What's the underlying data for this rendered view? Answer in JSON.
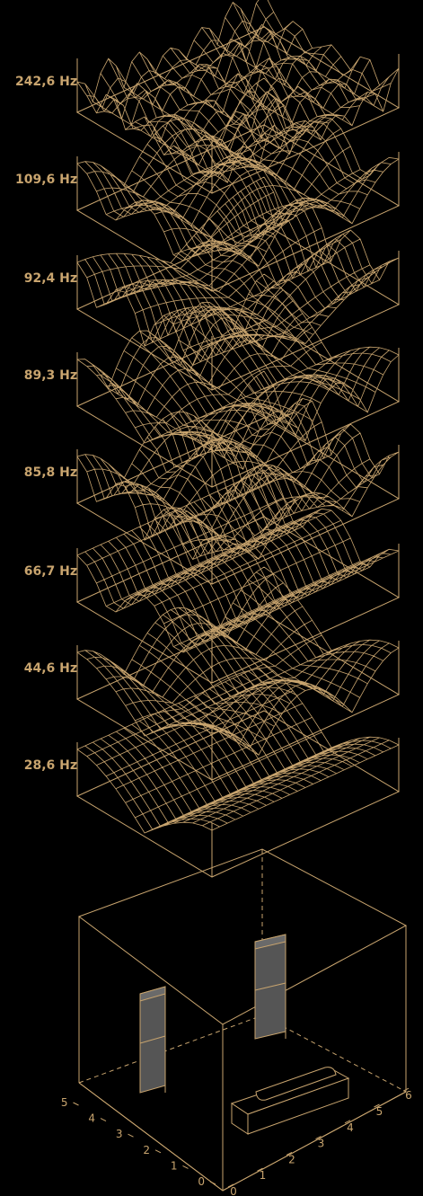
{
  "colors": {
    "background": "#000000",
    "line": "#c8a46e",
    "label": "#c8a46e",
    "speaker_face": "#555555",
    "speaker_top": "#6a6a6a"
  },
  "modes": [
    {
      "label": "242,6 Hz",
      "nx": 6,
      "ny": 4,
      "shape": "cos"
    },
    {
      "label": "109,6 Hz",
      "nx": 2,
      "ny": 2,
      "shape": "cos"
    },
    {
      "label": "92,4 Hz",
      "nx": 1,
      "ny": 3,
      "shape": "cos"
    },
    {
      "label": "89,3 Hz",
      "nx": 3,
      "ny": 1,
      "shape": "cos"
    },
    {
      "label": "85,8 Hz",
      "nx": 2,
      "ny": 3,
      "shape": "cos"
    },
    {
      "label": "66,7 Hz",
      "nx": 0,
      "ny": 2,
      "shape": "cos"
    },
    {
      "label": "44,6 Hz",
      "nx": 2,
      "ny": 1,
      "shape": "cos"
    },
    {
      "label": "28,6 Hz",
      "nx": 0,
      "ny": 1,
      "shape": "cos"
    }
  ],
  "room": {
    "axis_left_ticks": [
      "0",
      "1",
      "2",
      "3",
      "4",
      "5"
    ],
    "axis_right_ticks": [
      "0",
      "1",
      "2",
      "3",
      "4",
      "5",
      "6"
    ]
  }
}
